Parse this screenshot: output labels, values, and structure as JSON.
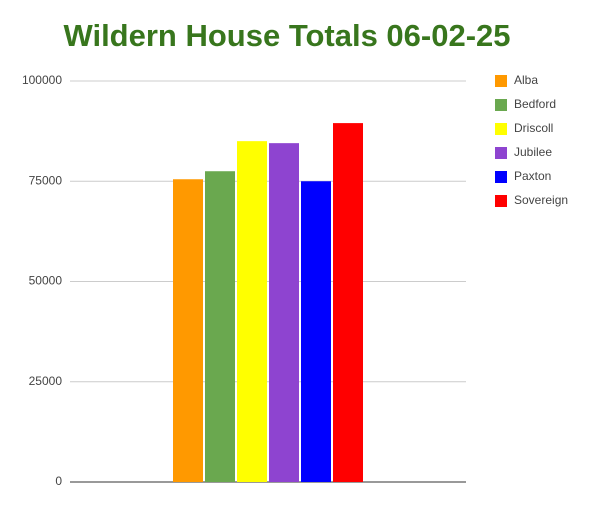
{
  "chart_data": {
    "type": "bar",
    "title": "Wildern House Totals 06-02-25",
    "categories": [
      null
    ],
    "series": [
      {
        "name": "Alba",
        "color": "#ff9900",
        "values": [
          75500
        ]
      },
      {
        "name": "Bedford",
        "color": "#6aa84f",
        "values": [
          77500
        ]
      },
      {
        "name": "Driscoll",
        "color": "#ffff00",
        "values": [
          85000
        ]
      },
      {
        "name": "Jubilee",
        "color": "#8e44d0",
        "values": [
          84500
        ]
      },
      {
        "name": "Paxton",
        "color": "#0000ff",
        "values": [
          75000
        ]
      },
      {
        "name": "Sovereign",
        "color": "#ff0000",
        "values": [
          89500
        ]
      }
    ],
    "ylim": [
      0,
      100000
    ],
    "yticks": [
      0,
      25000,
      50000,
      75000,
      100000
    ],
    "grid": true,
    "legend": "right"
  }
}
